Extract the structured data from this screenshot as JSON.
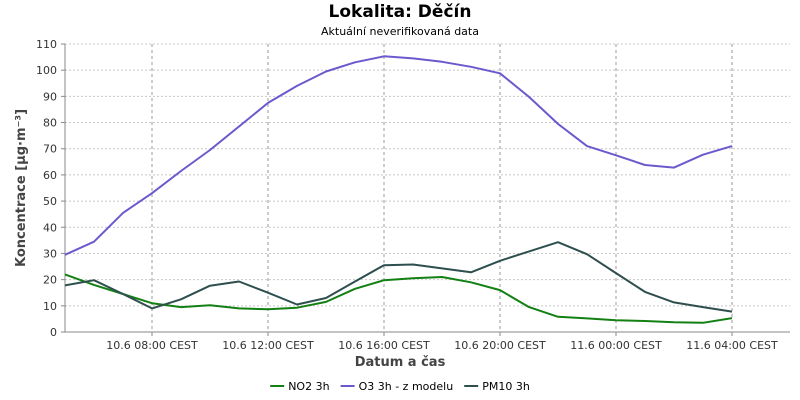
{
  "chart_data": {
    "type": "line",
    "title": "Lokalita: Děčín",
    "subtitle": "Aktuální neverifikovaná data",
    "xlabel": "Datum a čas",
    "ylabel": "Koncentrace [µg·m⁻³]",
    "ylim": [
      0,
      110
    ],
    "yticks": [
      0,
      10,
      20,
      30,
      40,
      50,
      60,
      70,
      80,
      90,
      100,
      110
    ],
    "x_range": [
      "10.6 05:00",
      "11.6 06:00"
    ],
    "xticks": [
      {
        "x": "10.6 08:00",
        "label": "10.6 08:00 CEST"
      },
      {
        "x": "10.6 12:00",
        "label": "10.6 12:00 CEST"
      },
      {
        "x": "10.6 16:00",
        "label": "10.6 16:00 CEST"
      },
      {
        "x": "10.6 20:00",
        "label": "10.6 20:00 CEST"
      },
      {
        "x": "11.6 00:00",
        "label": "11.6 00:00 CEST"
      },
      {
        "x": "11.6 04:00",
        "label": "11.6 04:00 CEST"
      }
    ],
    "grid": true,
    "legend_position": "bottom-center",
    "x": [
      "10.6 05:00",
      "10.6 06:00",
      "10.6 07:00",
      "10.6 08:00",
      "10.6 09:00",
      "10.6 10:00",
      "10.6 11:00",
      "10.6 12:00",
      "10.6 13:00",
      "10.6 14:00",
      "10.6 15:00",
      "10.6 16:00",
      "10.6 17:00",
      "10.6 18:00",
      "10.6 19:00",
      "10.6 20:00",
      "10.6 21:00",
      "10.6 22:00",
      "10.6 23:00",
      "11.6 00:00",
      "11.6 01:00",
      "11.6 02:00",
      "11.6 03:00",
      "11.6 04:00",
      "11.6 05:00"
    ],
    "series": [
      {
        "name": "NO2 3h",
        "color": "#138013",
        "values": [
          22,
          18,
          14.5,
          11,
          9.5,
          10.2,
          9,
          8.7,
          9.3,
          11.5,
          16.5,
          19.8,
          20.5,
          21,
          19,
          16,
          9.5,
          5.8,
          5.2,
          4.5,
          4.2,
          3.7,
          3.5,
          5.3,
          null
        ]
      },
      {
        "name": "O3 3h - z modelu",
        "color": "#6a5acd",
        "values": [
          29.5,
          34.5,
          45.5,
          53,
          61.5,
          69.5,
          78.5,
          87.5,
          94,
          99.5,
          103,
          105.3,
          104.5,
          103.2,
          101.3,
          98.8,
          89.8,
          79.5,
          71,
          67.5,
          63.8,
          62.8,
          67.7,
          71,
          null
        ]
      },
      {
        "name": "PM10 3h",
        "color": "#2f4f4f",
        "values": [
          17.8,
          19.8,
          14.5,
          9,
          12.5,
          17.7,
          19.3,
          15,
          10.5,
          13,
          19.3,
          25.5,
          25.8,
          24.3,
          22.8,
          27.2,
          30.8,
          34.3,
          29.7,
          22.5,
          15.3,
          11.3,
          9.5,
          7.8,
          null
        ]
      }
    ]
  }
}
